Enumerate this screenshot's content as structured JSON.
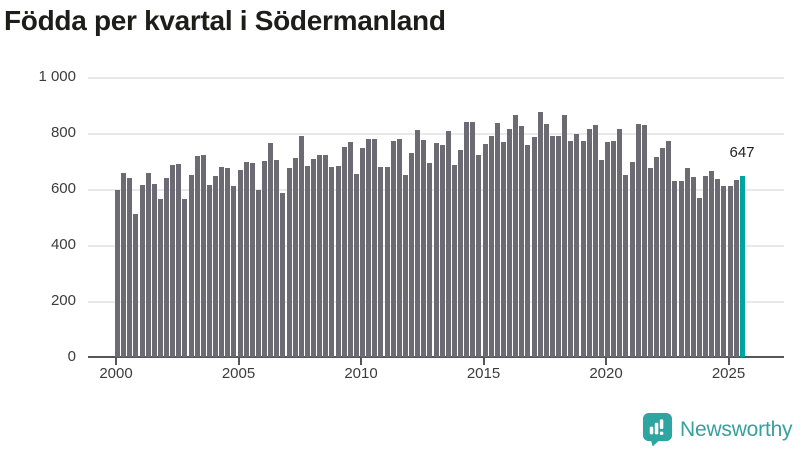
{
  "title": "Födda per kvartal i Södermanland",
  "chart_data": {
    "type": "bar",
    "title": "Födda per kvartal i Södermanland",
    "x_unit": "quarter",
    "start_period": "2000-Q1",
    "end_period": "2025-Q3",
    "x_tick_labels": [
      "2000",
      "2005",
      "2010",
      "2015",
      "2020",
      "2025"
    ],
    "y_ticks": [
      {
        "label": "1 000",
        "value": 1000
      },
      {
        "label": "800",
        "value": 800
      },
      {
        "label": "600",
        "value": 600
      },
      {
        "label": "400",
        "value": 400
      },
      {
        "label": "200",
        "value": 200
      },
      {
        "label": "0",
        "value": 0
      }
    ],
    "ylim": [
      0,
      1000
    ],
    "grid": true,
    "legend_position": "none",
    "bar_color": "#6C6B73",
    "values": [
      596,
      657,
      640,
      512,
      616,
      657,
      619,
      565,
      640,
      687,
      690,
      565,
      649,
      718,
      720,
      615,
      645,
      678,
      676,
      609,
      669,
      696,
      692,
      595,
      700,
      765,
      704,
      587,
      675,
      710,
      791,
      682,
      707,
      720,
      720,
      678,
      681,
      749,
      767,
      655,
      748,
      780,
      780,
      679,
      679,
      770,
      780,
      649,
      728,
      810,
      774,
      692,
      765,
      756,
      806,
      685,
      740,
      841,
      838,
      722,
      762,
      791,
      835,
      767,
      815,
      865,
      826,
      756,
      785,
      875,
      833,
      791,
      790,
      863,
      770,
      797,
      770,
      815,
      829,
      704,
      767,
      771,
      815,
      651,
      696,
      833,
      827,
      676,
      716,
      747,
      770,
      627,
      627,
      676,
      643,
      568,
      646,
      666,
      637,
      609,
      609,
      631,
      647
    ],
    "highlight": {
      "index": 102,
      "period": "2025-Q3",
      "value": 647,
      "label": "647",
      "color": "#00A49E"
    }
  },
  "branding": {
    "logo_text": "Newsworthy",
    "brand_color": "#38A09C",
    "icon_color": "#2EA5A0"
  }
}
